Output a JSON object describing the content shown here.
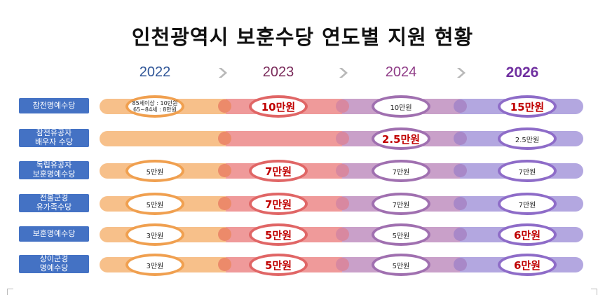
{
  "title": "인천광역시 보훈수당 연도별 지원 현황",
  "years": [
    {
      "label": "2022",
      "color": "#2f5597"
    },
    {
      "label": "2023",
      "color": "#7a2a5a"
    },
    {
      "label": "2024",
      "color": "#8e3a86"
    },
    {
      "label": "2026",
      "color": "#7030a0"
    }
  ],
  "colors": {
    "label_bg": "#4472c4",
    "bar_2022": "#f7c08a",
    "bar_2023": "#ef9a9a",
    "bar_2024": "#c9a0c9",
    "bar_2026": "#b3a7e0",
    "ring_2022": "#f0a050",
    "ring_2023": "#e06666",
    "ring_2024": "#a070b0",
    "ring_2026": "#8e6cc8",
    "emphasis_text": "#c00000"
  },
  "rows": [
    {
      "label": "참전명예수당",
      "cells": [
        {
          "lines": [
            "85세이상 : 10만원",
            "65~84세 : 8만원"
          ]
        },
        {
          "text": "10만원",
          "emph": true
        },
        {
          "text": "10만원",
          "emph": false
        },
        {
          "text": "15만원",
          "emph": true
        }
      ]
    },
    {
      "label": "참전유공자\n배우자 수당",
      "cells": [
        null,
        null,
        {
          "text": "2.5만원",
          "emph": true
        },
        {
          "text": "2.5만원",
          "emph": false
        }
      ]
    },
    {
      "label": "독립유공자\n보훈명예수당",
      "cells": [
        {
          "text": "5만원",
          "emph": false
        },
        {
          "text": "7만원",
          "emph": true
        },
        {
          "text": "7만원",
          "emph": false
        },
        {
          "text": "7만원",
          "emph": false
        }
      ]
    },
    {
      "label": "전몰군경\n유가족수당",
      "cells": [
        {
          "text": "5만원",
          "emph": false
        },
        {
          "text": "7만원",
          "emph": true
        },
        {
          "text": "7만원",
          "emph": false
        },
        {
          "text": "7만원",
          "emph": false
        }
      ]
    },
    {
      "label": "보훈명예수당",
      "cells": [
        {
          "text": "3만원",
          "emph": false
        },
        {
          "text": "5만원",
          "emph": true
        },
        {
          "text": "5만원",
          "emph": false
        },
        {
          "text": "6만원",
          "emph": true
        }
      ]
    },
    {
      "label": "상이군경\n명예수당",
      "cells": [
        {
          "text": "3만원",
          "emph": false
        },
        {
          "text": "5만원",
          "emph": true
        },
        {
          "text": "5만원",
          "emph": false
        },
        {
          "text": "6만원",
          "emph": true
        }
      ]
    }
  ]
}
